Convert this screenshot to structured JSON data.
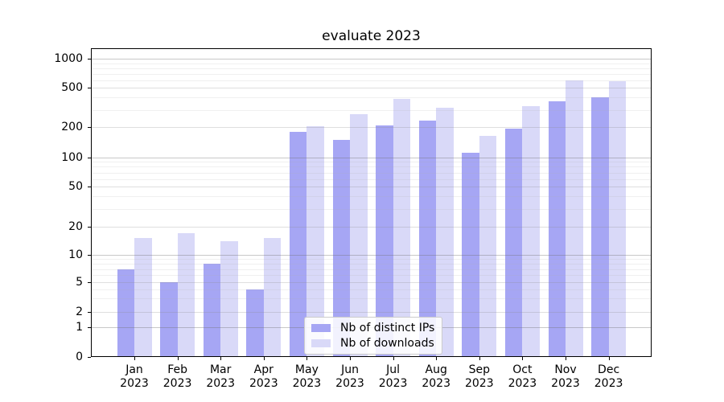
{
  "title": "evaluate 2023",
  "colors": {
    "distinct_ips": "#a6a6f4",
    "downloads": "#d9d9f8",
    "axis": "#000000",
    "grid": "#c9c9c9",
    "legend_border": "#cccccc"
  },
  "y_axis": {
    "tick_labels": [
      "0",
      "1",
      "2",
      "5",
      "10",
      "20",
      "50",
      "100",
      "200",
      "500",
      "1000"
    ]
  },
  "x_axis": {
    "tick_labels": [
      "Jan 2023",
      "Feb 2023",
      "Mar 2023",
      "Apr 2023",
      "May 2023",
      "Jun 2023",
      "Jul 2023",
      "Aug 2023",
      "Sep 2023",
      "Oct 2023",
      "Nov 2023",
      "Dec 2023"
    ]
  },
  "legend": {
    "items": [
      "Nb of distinct IPs",
      "Nb of downloads"
    ]
  },
  "chart_data": {
    "type": "bar",
    "title": "evaluate 2023",
    "categories": [
      "Jan 2023",
      "Feb 2023",
      "Mar 2023",
      "Apr 2023",
      "May 2023",
      "Jun 2023",
      "Jul 2023",
      "Aug 2023",
      "Sep 2023",
      "Oct 2023",
      "Nov 2023",
      "Dec 2023"
    ],
    "series": [
      {
        "name": "Nb of distinct IPs",
        "color": "#a6a6f4",
        "values": [
          7,
          5,
          8,
          4,
          180,
          150,
          210,
          235,
          112,
          193,
          365,
          405
        ]
      },
      {
        "name": "Nb of downloads",
        "color": "#d9d9f8",
        "values": [
          15,
          17,
          14,
          15,
          205,
          270,
          385,
          315,
          163,
          330,
          600,
          585
        ]
      }
    ],
    "xlabel": "",
    "ylabel": "",
    "yscale": "symlog",
    "yticks": [
      0,
      1,
      2,
      5,
      10,
      20,
      50,
      100,
      200,
      500,
      1000
    ],
    "ylim": [
      0,
      1200
    ],
    "grid": true,
    "legend_position": "lower center"
  }
}
